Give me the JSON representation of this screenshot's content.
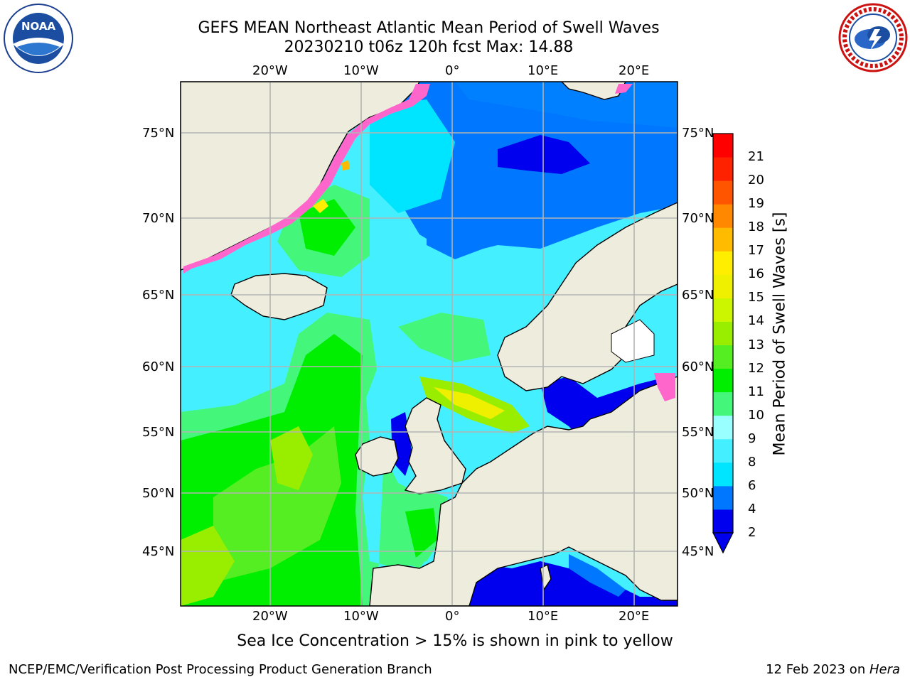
{
  "header": {
    "title_line1": "GEFS MEAN Northeast Atlantic Mean Period of Swell Waves",
    "title_line2": "20230210 t06z 120h fcst   Max: 14.88"
  },
  "logos": {
    "noaa": {
      "text": "NOAA",
      "ring_text": "NATIONAL OCEANIC AND ATMOSPHERIC ADMINISTRATION · U.S. DEPARTMENT OF COMMERCE"
    },
    "nws": {
      "ring_text": "NATIONAL WEATHER SERVICE"
    }
  },
  "map": {
    "lon_ticks": [
      "20°W",
      "10°W",
      "0°",
      "10°E",
      "20°E"
    ],
    "lat_ticks": [
      "75°N",
      "70°N",
      "65°N",
      "60°N",
      "55°N",
      "50°N",
      "45°N"
    ],
    "colors": {
      "land": "#eeecdd",
      "ice": "#ff66cc",
      "coast": "#000000",
      "grid": "#b3b3b3"
    },
    "region_labels": []
  },
  "colorbar": {
    "label": "Mean Period of Swell Waves [s]",
    "ticks": [
      "2",
      "4",
      "6",
      "8",
      "9",
      "10",
      "11",
      "12",
      "13",
      "14",
      "15",
      "16",
      "17",
      "18",
      "19",
      "20",
      "21"
    ],
    "colors": [
      "#0000ee",
      "#0077ff",
      "#00e5ff",
      "#44f0ff",
      "#99ffff",
      "#44f77a",
      "#00ee00",
      "#55ee22",
      "#99ee00",
      "#ccf500",
      "#eef000",
      "#ffee00",
      "#ffbb00",
      "#ff8800",
      "#ff5500",
      "#ff2200",
      "#ff0000"
    ]
  },
  "note": "Sea Ice Concentration > 15% is shown in pink to yellow",
  "footer": {
    "left": "NCEP/EMC/Verification Post Processing Product Generation Branch",
    "right_date": "12 Feb 2023 on ",
    "right_host": "Hera"
  }
}
